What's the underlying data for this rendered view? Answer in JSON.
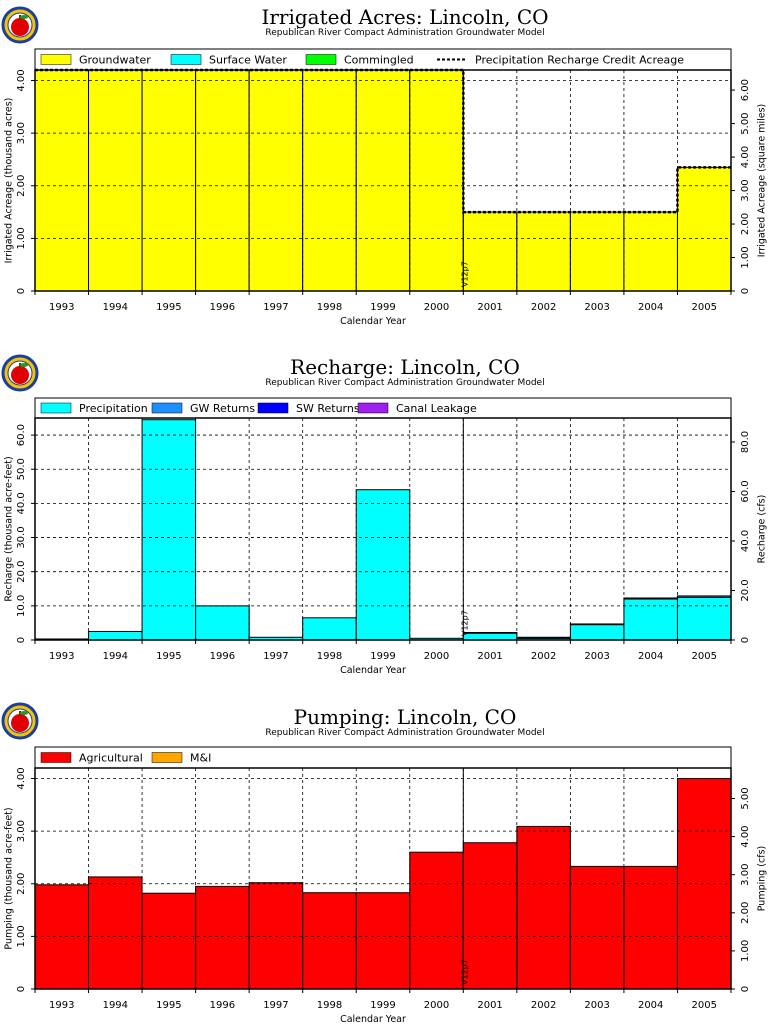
{
  "chart_data": [
    {
      "type": "bar",
      "title": "Irrigated Acres: Lincoln, CO",
      "subtitle": "Republican River Compact Administration Groundwater Model",
      "xlabel": "Calendar Year",
      "ylabel": "Irrigated Acreage (thousand acres)",
      "y2label": "Irrigated Acreage (square miles)",
      "categories": [
        "1993",
        "1994",
        "1995",
        "1996",
        "1997",
        "1998",
        "1999",
        "2000",
        "2001",
        "2002",
        "2003",
        "2004",
        "2005"
      ],
      "ylim": [
        0,
        4.2
      ],
      "yticks": [
        0,
        1.0,
        2.0,
        3.0,
        4.0
      ],
      "yticklabels": [
        "0",
        "1.00",
        "2.00",
        "3.00",
        "4.00"
      ],
      "y2lim": [
        0,
        6.6
      ],
      "y2ticks": [
        0,
        1.0,
        2.0,
        3.0,
        4.0,
        5.0,
        6.0
      ],
      "y2ticklabels": [
        "0",
        "1.00",
        "2.00",
        "3.00",
        "4.00",
        "5.00",
        "6.00"
      ],
      "grid": true,
      "legend_placement": "top",
      "annotation": "V12p7",
      "annotation_x": 2000.5,
      "series": [
        {
          "name": "Groundwater",
          "color": "#ffff00",
          "values": [
            4.2,
            4.2,
            4.2,
            4.2,
            4.2,
            4.2,
            4.2,
            4.2,
            1.5,
            1.5,
            1.5,
            1.5,
            2.35
          ]
        },
        {
          "name": "Surface Water",
          "color": "#00ffff",
          "values": [
            0,
            0,
            0,
            0,
            0,
            0,
            0,
            0,
            0,
            0,
            0,
            0,
            0
          ]
        },
        {
          "name": "Commingled",
          "color": "#00ff00",
          "values": [
            0,
            0,
            0,
            0,
            0,
            0,
            0,
            0,
            0,
            0,
            0,
            0,
            0
          ]
        },
        {
          "name": "Precipitation Recharge Credit Acreage",
          "style": "dashed-line",
          "color": "#000000",
          "values": [
            4.2,
            4.2,
            4.2,
            4.2,
            4.2,
            4.2,
            4.2,
            4.2,
            1.5,
            1.5,
            1.5,
            1.5,
            2.35
          ]
        }
      ]
    },
    {
      "type": "bar",
      "title": "Recharge: Lincoln, CO",
      "subtitle": "Republican River Compact Administration Groundwater Model",
      "xlabel": "Calendar Year",
      "ylabel": "Recharge (thousand acre-feet)",
      "y2label": "Recharge (cfs)",
      "categories": [
        "1993",
        "1994",
        "1995",
        "1996",
        "1997",
        "1998",
        "1999",
        "2000",
        "2001",
        "2002",
        "2003",
        "2004",
        "2005"
      ],
      "ylim": [
        0,
        65
      ],
      "yticks": [
        0,
        10,
        20,
        30,
        40,
        50,
        60
      ],
      "yticklabels": [
        "0",
        "10.0",
        "20.0",
        "30.0",
        "40.0",
        "50.0",
        "60.0"
      ],
      "gridlines": [
        0,
        10,
        20,
        30,
        40,
        50,
        60
      ],
      "y2lim": [
        0,
        89.7
      ],
      "y2ticks": [
        0,
        20,
        40,
        60,
        80
      ],
      "y2ticklabels": [
        "0",
        "20.0",
        "40.0",
        "60.0",
        "80.0"
      ],
      "grid": true,
      "legend_placement": "top",
      "annotation": "V12p7",
      "annotation_x": 2000.5,
      "series": [
        {
          "name": "Precipitation",
          "color": "#00ffff",
          "values": [
            0.3,
            2.5,
            64.5,
            10,
            0.8,
            6.5,
            44,
            0.5,
            2,
            0.5,
            4.5,
            12,
            12.5
          ]
        },
        {
          "name": "GW Returns",
          "color": "#1e90ff",
          "values": [
            0,
            0,
            0,
            0,
            0,
            0,
            0,
            0,
            0.2,
            0.3,
            0.2,
            0.3,
            0.4
          ]
        },
        {
          "name": "SW Returns",
          "color": "#0000ff",
          "values": [
            0,
            0,
            0,
            0,
            0,
            0,
            0,
            0,
            0,
            0,
            0,
            0,
            0
          ]
        },
        {
          "name": "Canal Leakage",
          "color": "#a020f0",
          "values": [
            0,
            0,
            0,
            0,
            0,
            0,
            0,
            0,
            0,
            0,
            0,
            0,
            0
          ]
        }
      ]
    },
    {
      "type": "bar",
      "title": "Pumping: Lincoln, CO",
      "subtitle": "Republican River Compact Administration Groundwater Model",
      "xlabel": "Calendar Year",
      "ylabel": "Pumping (thousand acre-feet)",
      "y2label": "Pumping (cfs)",
      "categories": [
        "1993",
        "1994",
        "1995",
        "1996",
        "1997",
        "1998",
        "1999",
        "2000",
        "2001",
        "2002",
        "2003",
        "2004",
        "2005"
      ],
      "ylim": [
        0,
        4.2
      ],
      "yticks": [
        0,
        1.0,
        2.0,
        3.0,
        4.0
      ],
      "yticklabels": [
        "0",
        "1.00",
        "2.00",
        "3.00",
        "4.00"
      ],
      "y2lim": [
        0,
        5.8
      ],
      "y2ticks": [
        0,
        1.0,
        2.0,
        3.0,
        4.0,
        5.0
      ],
      "y2ticklabels": [
        "0",
        "1.00",
        "2.00",
        "3.00",
        "4.00",
        "5.00"
      ],
      "grid": true,
      "legend_placement": "top",
      "annotation": "V12p7",
      "annotation_x": 2000.5,
      "series": [
        {
          "name": "Agricultural",
          "color": "#ff0000",
          "values": [
            1.98,
            2.13,
            1.82,
            1.95,
            2.02,
            1.83,
            1.83,
            2.6,
            2.78,
            3.09,
            2.33,
            2.33,
            4.0
          ]
        },
        {
          "name": "M&I",
          "color": "#ffa500",
          "values": [
            0,
            0,
            0,
            0,
            0,
            0,
            0,
            0,
            0,
            0,
            0,
            0,
            0
          ]
        }
      ]
    }
  ]
}
